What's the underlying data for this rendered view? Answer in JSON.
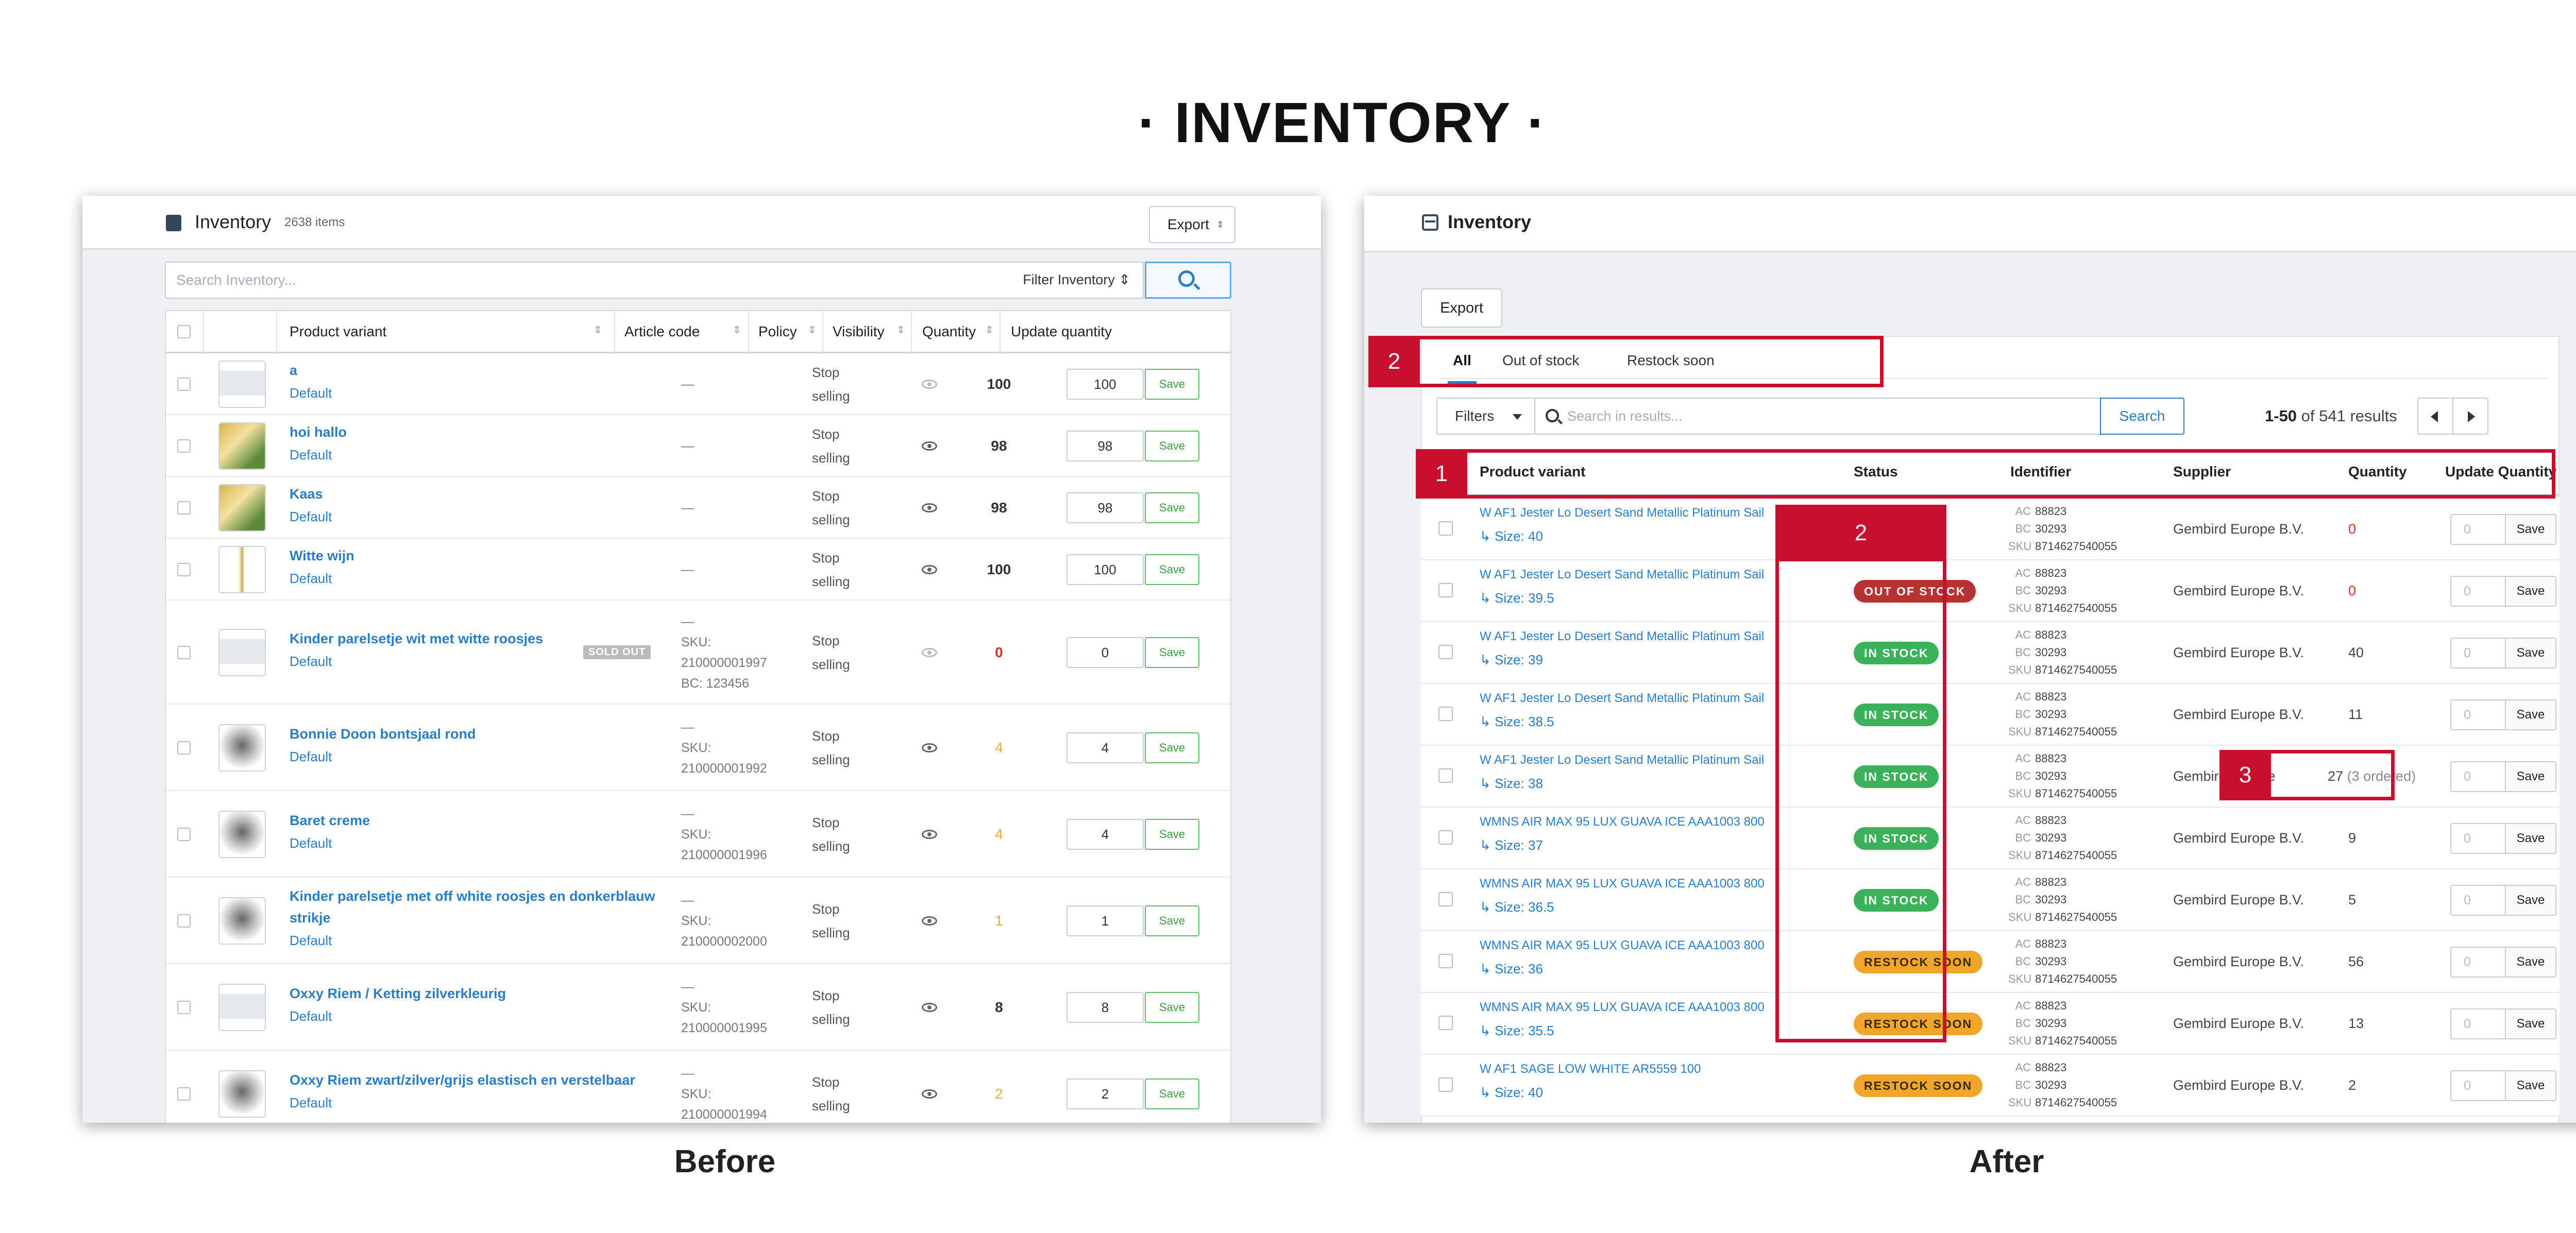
{
  "title": "· INVENTORY ·",
  "captions": {
    "before": "Before",
    "after": "After"
  },
  "before": {
    "header": {
      "title": "Inventory",
      "count": "2638 items",
      "export_label": "Export",
      "export_caret": "⇕"
    },
    "search": {
      "placeholder": "Search Inventory...",
      "filter_label": "Filter Inventory ⇕"
    },
    "columns": [
      "Product variant",
      "Article code",
      "Policy",
      "Visibility",
      "Quantity",
      "Update quantity"
    ],
    "save_label": "Save",
    "sold_out_label": "SOLD OUT",
    "rows": [
      {
        "name": "a",
        "variant": "Default",
        "article": [
          "—"
        ],
        "policy": [
          "Stop",
          "selling"
        ],
        "visible": false,
        "qty": "100",
        "qty_color": "normal",
        "update": "100"
      },
      {
        "name": "hoi hallo",
        "variant": "Default",
        "article": [
          "—"
        ],
        "policy": [
          "Stop",
          "selling"
        ],
        "visible": true,
        "qty": "98",
        "qty_color": "normal",
        "update": "98"
      },
      {
        "name": "Kaas",
        "variant": "Default",
        "article": [
          "—"
        ],
        "policy": [
          "Stop",
          "selling"
        ],
        "visible": true,
        "qty": "98",
        "qty_color": "normal",
        "update": "98"
      },
      {
        "name": "Witte wijn",
        "variant": "Default",
        "article": [
          "—"
        ],
        "policy": [
          "Stop",
          "selling"
        ],
        "visible": true,
        "qty": "100",
        "qty_color": "normal",
        "update": "100"
      },
      {
        "name": "Kinder parelsetje wit met witte roosjes",
        "variant": "Default",
        "article": [
          "—",
          "SKU:",
          "210000001997",
          "BC: 123456"
        ],
        "policy": [
          "Stop",
          "selling"
        ],
        "visible": false,
        "qty": "0",
        "qty_color": "red",
        "update": "0",
        "sold_out": true
      },
      {
        "name": "Bonnie Doon bontsjaal rond",
        "variant": "Default",
        "article": [
          "—",
          "SKU:",
          "210000001992"
        ],
        "policy": [
          "Stop",
          "selling"
        ],
        "visible": true,
        "qty": "4",
        "qty_color": "orange",
        "update": "4"
      },
      {
        "name": "Baret creme",
        "variant": "Default",
        "article": [
          "—",
          "SKU:",
          "210000001996"
        ],
        "policy": [
          "Stop",
          "selling"
        ],
        "visible": true,
        "qty": "4",
        "qty_color": "orange",
        "update": "4"
      },
      {
        "name": "Kinder parelsetje met off white roosjes en donkerblauw",
        "name2": "strikje",
        "variant": "Default",
        "article": [
          "—",
          "SKU:",
          "210000002000"
        ],
        "policy": [
          "Stop",
          "selling"
        ],
        "visible": true,
        "qty": "1",
        "qty_color": "orange",
        "update": "1"
      },
      {
        "name": "Oxxy Riem / Ketting zilverkleurig",
        "variant": "Default",
        "article": [
          "—",
          "SKU:",
          "210000001995"
        ],
        "policy": [
          "Stop",
          "selling"
        ],
        "visible": true,
        "qty": "8",
        "qty_color": "normal",
        "update": "8"
      },
      {
        "name": "Oxxy Riem zwart/zilver/grijs elastisch en verstelbaar",
        "variant": "Default",
        "article": [
          "—",
          "SKU:",
          "210000001994"
        ],
        "policy": [
          "Stop",
          "selling"
        ],
        "visible": true,
        "qty": "2",
        "qty_color": "orange",
        "update": "2"
      }
    ]
  },
  "after": {
    "header": {
      "title": "Inventory"
    },
    "export_label": "Export",
    "tabs": [
      "All",
      "Out of stock",
      "Restock soon"
    ],
    "filters_label": "Filters",
    "search_placeholder": "Search in results...",
    "search_button": "Search",
    "results": {
      "range": "1-50",
      "text": "of 541 results"
    },
    "columns": [
      "Product variant",
      "Status",
      "Identifier",
      "Supplier",
      "Quantity",
      "Update Quantity"
    ],
    "save_label": "Save",
    "update_placeholder": "0",
    "annotations": [
      "1",
      "2",
      "2",
      "3"
    ],
    "rows": [
      {
        "name": "W AF1 Jester Lo Desert Sand Metallic Platinum Sail",
        "size": "↳ Size: 40",
        "status": "",
        "ac": "88823",
        "bc": "30293",
        "sku": "8714627540055",
        "supplier": "Gembird Europe B.V.",
        "qty": "0",
        "ordered": ""
      },
      {
        "name": "W AF1 Jester Lo Desert Sand Metallic Platinum Sail",
        "size": "↳ Size: 39.5",
        "status": "OUT OF STOCK",
        "ac": "88823",
        "bc": "30293",
        "sku": "8714627540055",
        "supplier": "Gembird Europe B.V.",
        "qty": "0",
        "ordered": ""
      },
      {
        "name": "W AF1 Jester Lo Desert Sand Metallic Platinum Sail",
        "size": "↳ Size: 39",
        "status": "IN STOCK",
        "ac": "88823",
        "bc": "30293",
        "sku": "8714627540055",
        "supplier": "Gembird Europe B.V.",
        "qty": "40",
        "ordered": ""
      },
      {
        "name": "W AF1 Jester Lo Desert Sand Metallic Platinum Sail",
        "size": "↳ Size: 38.5",
        "status": "IN STOCK",
        "ac": "88823",
        "bc": "30293",
        "sku": "8714627540055",
        "supplier": "Gembird Europe B.V.",
        "qty": "11",
        "ordered": ""
      },
      {
        "name": "W AF1 Jester Lo Desert Sand Metallic Platinum Sail",
        "size": "↳ Size: 38",
        "status": "IN STOCK",
        "ac": "88823",
        "bc": "30293",
        "sku": "8714627540055",
        "supplier": "Gembird Europe",
        "qty": "27",
        "ordered": "(3 ordered)"
      },
      {
        "name": "WMNS AIR MAX 95 LUX GUAVA ICE AAA1003 800",
        "size": "↳ Size: 37",
        "status": "IN STOCK",
        "ac": "88823",
        "bc": "30293",
        "sku": "8714627540055",
        "supplier": "Gembird Europe B.V.",
        "qty": "9",
        "ordered": ""
      },
      {
        "name": "WMNS AIR MAX 95 LUX GUAVA ICE AAA1003 800",
        "size": "↳ Size: 36.5",
        "status": "IN STOCK",
        "ac": "88823",
        "bc": "30293",
        "sku": "8714627540055",
        "supplier": "Gembird Europe B.V.",
        "qty": "5",
        "ordered": ""
      },
      {
        "name": "WMNS AIR MAX 95 LUX GUAVA ICE AAA1003 800",
        "size": "↳ Size: 36",
        "status": "RESTOCK SOON",
        "ac": "88823",
        "bc": "30293",
        "sku": "8714627540055",
        "supplier": "Gembird Europe B.V.",
        "qty": "56",
        "ordered": ""
      },
      {
        "name": "WMNS AIR MAX 95 LUX GUAVA ICE AAA1003 800",
        "size": "↳ Size: 35.5",
        "status": "RESTOCK SOON",
        "ac": "88823",
        "bc": "30293",
        "sku": "8714627540055",
        "supplier": "Gembird Europe B.V.",
        "qty": "13",
        "ordered": ""
      },
      {
        "name": "W AF1 SAGE LOW WHITE AR5559 100",
        "size": "↳ Size: 40",
        "status": "RESTOCK SOON",
        "ac": "88823",
        "bc": "30293",
        "sku": "8714627540055",
        "supplier": "Gembird Europe B.V.",
        "qty": "2",
        "ordered": ""
      }
    ]
  }
}
